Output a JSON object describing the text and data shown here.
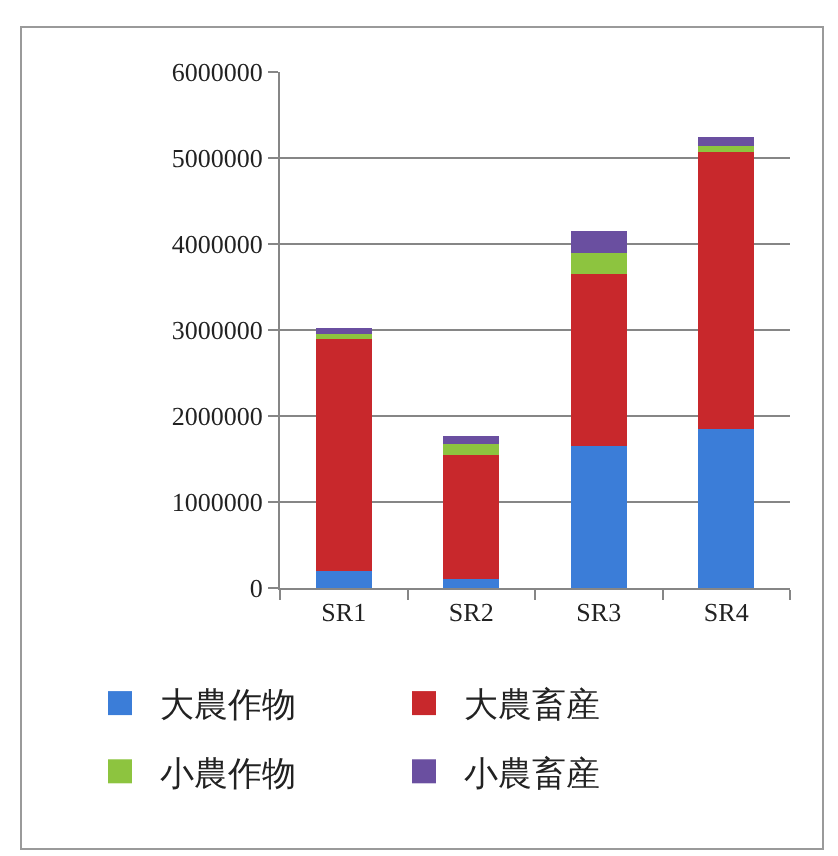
{
  "chart_data": {
    "type": "bar",
    "stacked": true,
    "categories": [
      "SR1",
      "SR2",
      "SR3",
      "SR4"
    ],
    "series": [
      {
        "name": "大農作物",
        "color": "#3b7dd8",
        "values": [
          200000,
          100000,
          1650000,
          1850000
        ]
      },
      {
        "name": "大農畜産",
        "color": "#c8282c",
        "values": [
          2700000,
          1450000,
          2000000,
          3220000
        ]
      },
      {
        "name": "小農作物",
        "color": "#8dc43f",
        "values": [
          50000,
          120000,
          250000,
          70000
        ]
      },
      {
        "name": "小農畜産",
        "color": "#6a4fa0",
        "values": [
          70000,
          100000,
          250000,
          110000
        ]
      }
    ],
    "ylim": [
      0,
      6000000
    ],
    "yticks": [
      0,
      1000000,
      2000000,
      3000000,
      4000000,
      5000000,
      6000000
    ],
    "grid": "y",
    "legend": "bottom"
  }
}
